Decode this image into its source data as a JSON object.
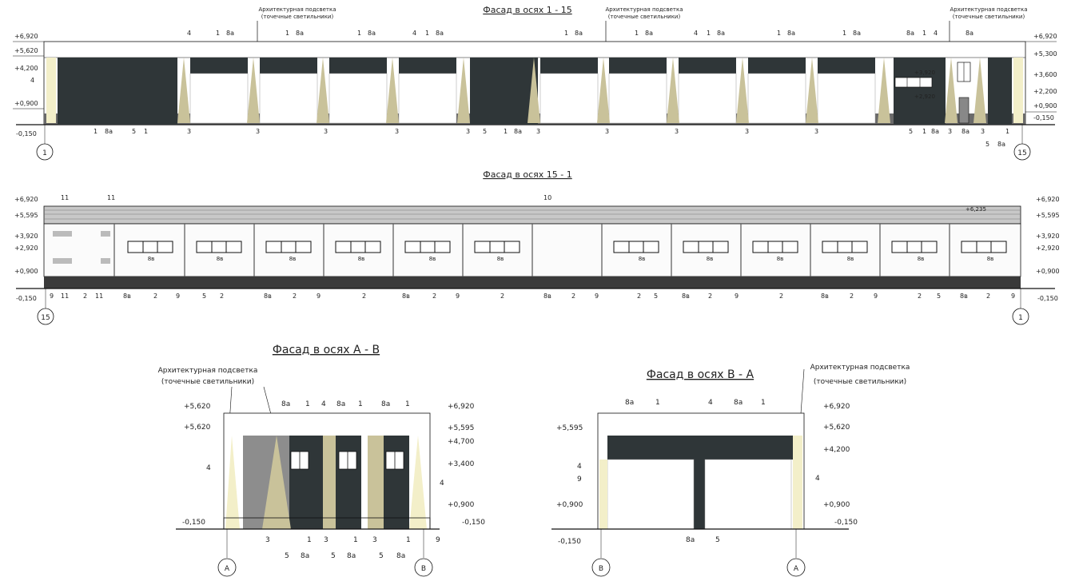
{
  "titles": {
    "facade_1_15": "Фасад в осях 1 - 15",
    "facade_15_1": "Фасад в осях 15 - 1",
    "facade_a_v": "Фасад в осях А - В",
    "facade_v_a": "Фасад в осях В - А"
  },
  "lighting_note": {
    "line1": "Архитектурная подсветка",
    "line2": "(точечные светильники)"
  },
  "axes": {
    "a1": "1",
    "a15": "15",
    "aA": "А",
    "aV": "В"
  },
  "levels": {
    "l6920": "+6,920",
    "l5620": "+5,620",
    "l5300": "+5,300",
    "l5595": "+5,595",
    "l4700": "+4,700",
    "l4200": "+4,200",
    "l3920": "+3,920",
    "l3600": "+3,600",
    "l3400": "+3,400",
    "l2920": "+2,920",
    "l2200": "+2,200",
    "l0900": "+0,900",
    "l0150": "-0,150",
    "l6235": "+6,235"
  },
  "marks": {
    "m1": "1",
    "m2": "2",
    "m3": "3",
    "m4": "4",
    "m5": "5",
    "m8a": "8а",
    "m8v": "8в",
    "m9": "9",
    "m10": "10",
    "m11": "11"
  },
  "colors": {
    "dark_panel": "#2f3638",
    "plinth": "#5a5a5a",
    "light_beam": "#c9c29a",
    "light_beam_pale": "#f3efc9",
    "gray_panel": "#8d8d8d",
    "line": "#111111"
  }
}
